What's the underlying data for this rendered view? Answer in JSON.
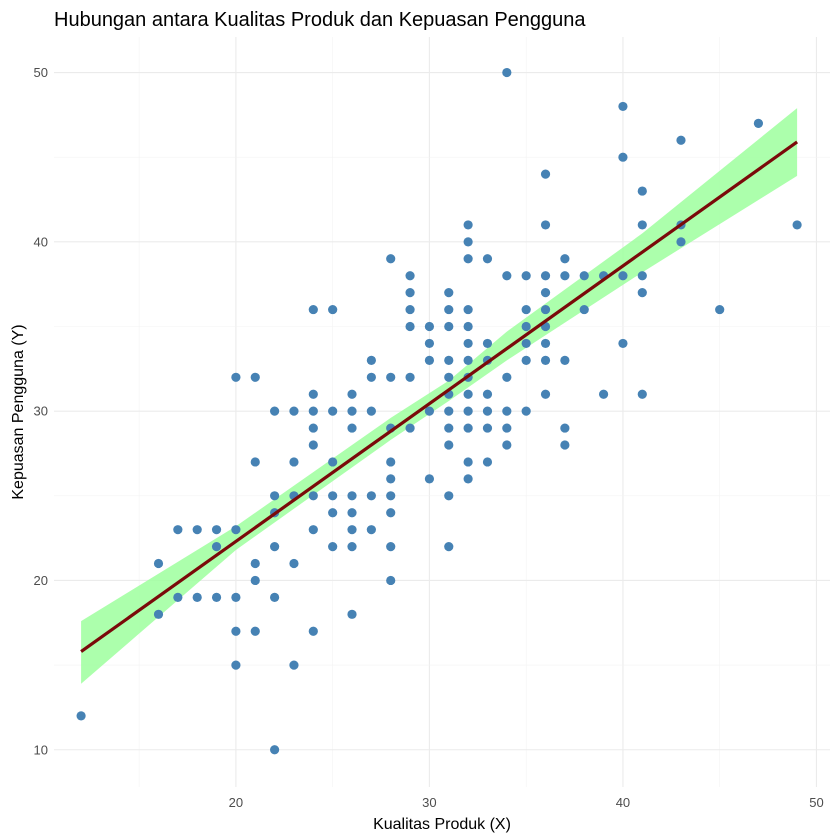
{
  "chart_data": {
    "type": "scatter",
    "title": "Hubungan antara Kualitas Produk dan Kepuasan Pengguna",
    "xlabel": "Kualitas Produk (X)",
    "ylabel": "Kepuasan Pengguna (Y)",
    "xlim": [
      10.6,
      50.7
    ],
    "ylim": [
      7.8,
      52.1
    ],
    "x_ticks": [
      20,
      30,
      40,
      50
    ],
    "y_ticks": [
      10,
      20,
      30,
      40,
      50
    ],
    "grid": true,
    "point_color": "#4682b4",
    "fit_line_color": "#7a0a0a",
    "confidence_band_color": "#9dff9d",
    "fit_line": {
      "x_start": 12,
      "y_start": 15.8,
      "x_end": 49,
      "y_end": 45.9
    },
    "confidence_band": {
      "x": [
        12,
        20,
        28,
        31,
        34,
        41,
        49
      ],
      "lower": [
        13.9,
        21.8,
        28.3,
        30.6,
        33.0,
        38.2,
        43.9
      ],
      "upper": [
        17.6,
        23.2,
        29.6,
        31.8,
        34.7,
        40.5,
        47.9
      ]
    },
    "points": [
      [
        12,
        12
      ],
      [
        16,
        21
      ],
      [
        16,
        18
      ],
      [
        17,
        23
      ],
      [
        17,
        19
      ],
      [
        18,
        23
      ],
      [
        18,
        19
      ],
      [
        19,
        23
      ],
      [
        19,
        22
      ],
      [
        19,
        19
      ],
      [
        20,
        32
      ],
      [
        20,
        23
      ],
      [
        20,
        19
      ],
      [
        20,
        17
      ],
      [
        20,
        15
      ],
      [
        21,
        32
      ],
      [
        21,
        27
      ],
      [
        21,
        21
      ],
      [
        21,
        20
      ],
      [
        21,
        17
      ],
      [
        22,
        30
      ],
      [
        22,
        25
      ],
      [
        22,
        24
      ],
      [
        22,
        22
      ],
      [
        22,
        19
      ],
      [
        22,
        10
      ],
      [
        23,
        30
      ],
      [
        23,
        27
      ],
      [
        23,
        25
      ],
      [
        23,
        21
      ],
      [
        23,
        15
      ],
      [
        24,
        36
      ],
      [
        24,
        31
      ],
      [
        24,
        30
      ],
      [
        24,
        29
      ],
      [
        24,
        28
      ],
      [
        24,
        25
      ],
      [
        24,
        23
      ],
      [
        24,
        17
      ],
      [
        25,
        36
      ],
      [
        25,
        30
      ],
      [
        25,
        27
      ],
      [
        25,
        25
      ],
      [
        25,
        24
      ],
      [
        25,
        22
      ],
      [
        26,
        31
      ],
      [
        26,
        30
      ],
      [
        26,
        29
      ],
      [
        26,
        25
      ],
      [
        26,
        24
      ],
      [
        26,
        23
      ],
      [
        26,
        22
      ],
      [
        26,
        18
      ],
      [
        27,
        33
      ],
      [
        27,
        32
      ],
      [
        27,
        30
      ],
      [
        27,
        25
      ],
      [
        27,
        23
      ],
      [
        28,
        39
      ],
      [
        28,
        32
      ],
      [
        28,
        29
      ],
      [
        28,
        27
      ],
      [
        28,
        26
      ],
      [
        28,
        25
      ],
      [
        28,
        24
      ],
      [
        28,
        22
      ],
      [
        28,
        20
      ],
      [
        29,
        38
      ],
      [
        29,
        37
      ],
      [
        29,
        36
      ],
      [
        29,
        35
      ],
      [
        29,
        32
      ],
      [
        29,
        29
      ],
      [
        30,
        35
      ],
      [
        30,
        34
      ],
      [
        30,
        33
      ],
      [
        30,
        30
      ],
      [
        30,
        26
      ],
      [
        31,
        37
      ],
      [
        31,
        36
      ],
      [
        31,
        35
      ],
      [
        31,
        33
      ],
      [
        31,
        32
      ],
      [
        31,
        31
      ],
      [
        31,
        30
      ],
      [
        31,
        29
      ],
      [
        31,
        28
      ],
      [
        31,
        25
      ],
      [
        31,
        22
      ],
      [
        32,
        41
      ],
      [
        32,
        40
      ],
      [
        32,
        39
      ],
      [
        32,
        36
      ],
      [
        32,
        35
      ],
      [
        32,
        34
      ],
      [
        32,
        33
      ],
      [
        32,
        32
      ],
      [
        32,
        31
      ],
      [
        32,
        30
      ],
      [
        32,
        29
      ],
      [
        32,
        27
      ],
      [
        32,
        26
      ],
      [
        33,
        39
      ],
      [
        33,
        34
      ],
      [
        33,
        33
      ],
      [
        33,
        31
      ],
      [
        33,
        30
      ],
      [
        33,
        29
      ],
      [
        33,
        27
      ],
      [
        34,
        50
      ],
      [
        34,
        38
      ],
      [
        34,
        32
      ],
      [
        34,
        30
      ],
      [
        34,
        29
      ],
      [
        34,
        28
      ],
      [
        35,
        38
      ],
      [
        35,
        36
      ],
      [
        35,
        35
      ],
      [
        35,
        34
      ],
      [
        35,
        33
      ],
      [
        35,
        30
      ],
      [
        36,
        44
      ],
      [
        36,
        41
      ],
      [
        36,
        38
      ],
      [
        36,
        37
      ],
      [
        36,
        36
      ],
      [
        36,
        35
      ],
      [
        36,
        34
      ],
      [
        36,
        33
      ],
      [
        36,
        31
      ],
      [
        37,
        39
      ],
      [
        37,
        38
      ],
      [
        37,
        33
      ],
      [
        37,
        29
      ],
      [
        37,
        28
      ],
      [
        38,
        38
      ],
      [
        38,
        36
      ],
      [
        39,
        38
      ],
      [
        39,
        31
      ],
      [
        40,
        48
      ],
      [
        40,
        45
      ],
      [
        40,
        38
      ],
      [
        40,
        34
      ],
      [
        41,
        43
      ],
      [
        41,
        41
      ],
      [
        41,
        38
      ],
      [
        41,
        37
      ],
      [
        41,
        31
      ],
      [
        43,
        46
      ],
      [
        43,
        41
      ],
      [
        43,
        40
      ],
      [
        45,
        36
      ],
      [
        47,
        47
      ],
      [
        49,
        41
      ]
    ]
  }
}
